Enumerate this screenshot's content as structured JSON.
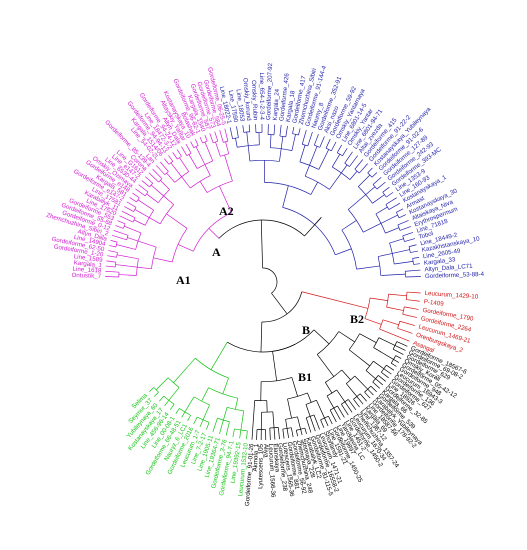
{
  "nodes": {
    "A": "A",
    "A1": "A1",
    "A2": "A2",
    "B": "B",
    "B1": "B1",
    "B2": "B2"
  },
  "colors": {
    "blue": "#1f1fa8",
    "magenta": "#d21cd2",
    "red": "#d21414",
    "green": "#12c412",
    "black": "#000000"
  },
  "clusters": [
    {
      "id": "A2",
      "color": "blue",
      "leaves": [
        "Line_18022-1",
        "Line_17590",
        "Line_18053",
        "Omskiy_korund",
        "Omskiy_Rubin",
        "Line_654-1-2-3-4",
        "Gordeiforme_207-92",
        "Kargala_24",
        "Gordeiforme_426",
        "Kargala_18",
        "Gordeiforme_417",
        "Zhemchuzhina_Sibiri",
        "Gordeiforme_91-144-4",
        "Naumy_8",
        "Gordeiforme_352-91",
        "Aksi_nazo",
        "Gordeiforme_59-92",
        "Omskiy_Yantarnaya",
        "Line_6801-14-5",
        "Omskiy_Yantar",
        "Line_6801-94-71",
        "Altai_zvezda",
        "Gordeiforme_415",
        "Gordeiforme_91-22-2",
        "Kostanayskaya_Yubileynaya",
        "Gordeiforme_91-02-6",
        "Gordeiforme_127-89",
        "Gordeiforme_242-93",
        "Gordeiforme_393-MC",
        "Line_1353-9",
        "Line_160-93",
        "Kostanayskaya_1",
        "Armast",
        "Kostanayskaya_30",
        "Altaiskaya_Niva",
        "Erythrospermum",
        "Line_71818",
        "Tobol",
        "Line_18449-2",
        "Kazakhstanskaya_10",
        "Line_2605-49",
        "Kargala_33",
        "Altyn_Dala_LC71",
        "Gordeiforme_53-88-4"
      ]
    },
    {
      "id": "A1",
      "color": "magenta",
      "leaves": [
        "Ontustik_7",
        "Line_1618",
        "Kargala_1",
        "Line_1589",
        "Gordeiforme_1-20",
        "Gordeiforme_62-50",
        "Line_14904",
        "Altyn_Dala",
        "Zhemchuzhina_Sibiri_2",
        "Gordeiforme_0-12",
        "Gordeiforme_55-68",
        "Gordeiforme_553",
        "Line_17520",
        "Karabalyk_11",
        "Line_17581",
        "Gordeiforme_e147-2",
        "Kargala_581",
        "Gordeiforme_e148",
        "Omskiy_Ozimaya",
        "Line_6530-44",
        "Line_e147-2",
        "Line_G1612",
        "Corona",
        "Gordeiforme_85-139-4",
        "Lan",
        "Line_54-02-2L",
        "Kargala_1514/06",
        "Gordeiforme_94-94-13",
        "Line_18472-3-2",
        "Gordeiforme_94-24-12",
        "Altyn_Dala",
        "Altayskiy_Yantar",
        "Kostanayskaya_10",
        "Bolashak",
        "Gordeiforme_96-82-1",
        "Kargala_1540",
        "Gordeiforme_587",
        "Gordeiforme_573",
        "Gordeiforme_584",
        "Gordeiforme_06-25-5"
      ]
    },
    {
      "id": "B2",
      "color": "red",
      "leaves": [
        "Leucurum_1429-10",
        "P-1409",
        "Gordeiforme_1790",
        "Gordeiforme_2264",
        "Leucurum_1469-21",
        "Orenburgskaya_2",
        "Asangal"
      ]
    },
    {
      "id": "B1",
      "color": "black",
      "leaves": [
        "Gordeiforme_18567-6",
        "Gordeiforme_69-08-2",
        "Gordeiforme_629",
        "Omskiy_Korall",
        "Gordeiforme_05-42-12",
        "Gordeiforme_948",
        "Leucurum_16943-3",
        "Gordeiforme_136",
        "Gordeiforme_627",
        "Line_18926",
        "Gordeiforme_32-85",
        "Kargala_66",
        "Gordeiforme_539",
        "Karabalyk_Yubileynaya",
        "Gordeiforme_178-92-2",
        "Line_18587-66",
        "Kargala_69",
        "Line_1367-12",
        "Zhemchuzhina_1357-24",
        "Leucurum_1670-34",
        "Gordeiforme_1450-2",
        "Line_1451-2",
        "Yaroslavna_LC",
        "Line_19897",
        "Gordeiforme_1450-25",
        "Line_1591-21",
        "Shortandy",
        "Leucurum_1471-21",
        "Gordeiforme_16558-2",
        "Gordeiforme_81-115-5",
        "Karabalyk_LC2",
        "Stepnaya_228",
        "Zhemchuzhina_248",
        "Gordeiforme_56-92",
        "Gordeiforme_881",
        "Lutescens_1565-36",
        "Gordeiforme_238",
        "Elanskaya",
        "Leucurum_1566-36",
        "Aliya",
        "Lyutescens_105",
        "Akmola_1",
        "Gordeiforme_91-01-26"
      ]
    },
    {
      "id": "B1g",
      "color": "green",
      "leaves": [
        "Leucurum_1532-10",
        "Line_19392-15",
        "Gordeiforme_94-7-1",
        "Gordeiforme_3-76",
        "Line_19364-71",
        "Line_1905-11",
        "Line_7-2-17",
        "Leucurum_1-7",
        "Gordeiforme_2016",
        "Nauryz_6_LC1",
        "Gordeiforme_66-48-51",
        "Line_00-08-1",
        "Line_456-96-14",
        "Kostanayskaya_17",
        "Yubileynaya_60",
        "Seymur_37",
        "Selima"
      ]
    }
  ]
}
